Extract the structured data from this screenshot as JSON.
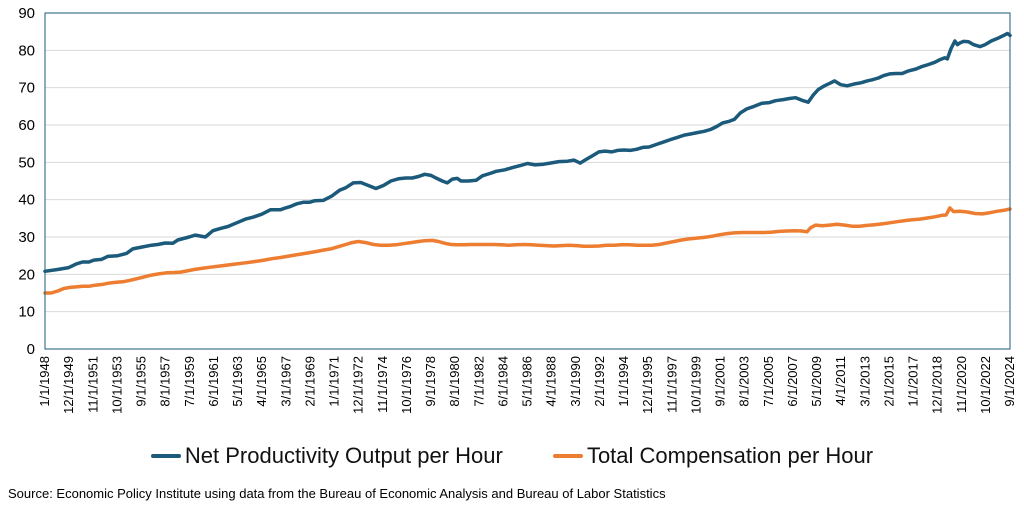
{
  "source_note": "Source: Economic Policy Institute using data from the Bureau of Economic Analysis and Bureau of Labor Statistics",
  "chart_data": {
    "type": "line",
    "title": "",
    "xlabel": "",
    "ylabel": "",
    "ylim": [
      0,
      90
    ],
    "yticks": [
      0,
      10,
      20,
      30,
      40,
      50,
      60,
      70,
      80,
      90
    ],
    "xlim": [
      1948.0,
      2025.0
    ],
    "xtick_labels": [
      "1/1/1948",
      "12/1/1949",
      "11/1/1951",
      "10/1/1953",
      "9/1/1955",
      "8/1/1957",
      "7/1/1959",
      "6/1/1961",
      "5/1/1963",
      "4/1/1965",
      "3/1/1967",
      "2/1/1969",
      "1/1/1971",
      "12/1/1972",
      "11/1/1974",
      "10/1/1976",
      "9/1/1978",
      "8/1/1980",
      "7/1/1982",
      "6/1/1984",
      "5/1/1986",
      "4/1/1988",
      "3/1/1990",
      "2/1/1992",
      "1/1/1994",
      "12/1/1995",
      "11/1/1997",
      "10/1/1999",
      "9/1/2001",
      "8/1/2003",
      "7/1/2005",
      "6/1/2007",
      "5/1/2009",
      "4/1/2011",
      "3/1/2013",
      "2/1/2015",
      "1/1/2017",
      "12/1/2018",
      "11/1/2020",
      "10/1/2022",
      "9/1/2024"
    ],
    "grid": "horizontal",
    "legend_position": "bottom",
    "series": [
      {
        "name": "Net Productivity Output per Hour",
        "color": "#1b5a7a",
        "points": [
          [
            1948.0,
            20.8
          ],
          [
            1949.0,
            21.3
          ],
          [
            1949.9,
            21.8
          ],
          [
            1950.5,
            22.8
          ],
          [
            1951.0,
            23.3
          ],
          [
            1951.5,
            23.3
          ],
          [
            1951.9,
            23.8
          ],
          [
            1952.5,
            24.0
          ],
          [
            1953.0,
            24.8
          ],
          [
            1953.8,
            25.0
          ],
          [
            1954.5,
            25.6
          ],
          [
            1955.0,
            26.8
          ],
          [
            1955.7,
            27.3
          ],
          [
            1956.5,
            27.8
          ],
          [
            1957.0,
            28.0
          ],
          [
            1957.6,
            28.4
          ],
          [
            1958.2,
            28.3
          ],
          [
            1958.6,
            29.2
          ],
          [
            1959.5,
            30.0
          ],
          [
            1960.0,
            30.5
          ],
          [
            1960.8,
            30.0
          ],
          [
            1961.4,
            31.7
          ],
          [
            1962.0,
            32.3
          ],
          [
            1962.6,
            32.8
          ],
          [
            1963.3,
            33.8
          ],
          [
            1964.0,
            34.8
          ],
          [
            1964.6,
            35.3
          ],
          [
            1965.3,
            36.1
          ],
          [
            1966.0,
            37.3
          ],
          [
            1966.8,
            37.3
          ],
          [
            1967.2,
            37.8
          ],
          [
            1967.6,
            38.2
          ],
          [
            1968.1,
            38.9
          ],
          [
            1968.6,
            39.3
          ],
          [
            1969.1,
            39.3
          ],
          [
            1969.5,
            39.7
          ],
          [
            1970.2,
            39.8
          ],
          [
            1970.9,
            41.0
          ],
          [
            1971.5,
            42.5
          ],
          [
            1972.0,
            43.2
          ],
          [
            1972.6,
            44.5
          ],
          [
            1973.2,
            44.6
          ],
          [
            1973.8,
            43.8
          ],
          [
            1974.4,
            43.0
          ],
          [
            1975.0,
            43.8
          ],
          [
            1975.6,
            45.0
          ],
          [
            1976.2,
            45.6
          ],
          [
            1976.8,
            45.8
          ],
          [
            1977.3,
            45.8
          ],
          [
            1977.8,
            46.2
          ],
          [
            1978.3,
            46.8
          ],
          [
            1978.8,
            46.5
          ],
          [
            1979.2,
            45.8
          ],
          [
            1979.7,
            45.0
          ],
          [
            1980.1,
            44.5
          ],
          [
            1980.5,
            45.5
          ],
          [
            1980.9,
            45.7
          ],
          [
            1981.2,
            45.0
          ],
          [
            1981.8,
            45.0
          ],
          [
            1982.4,
            45.2
          ],
          [
            1982.9,
            46.4
          ],
          [
            1983.5,
            47.0
          ],
          [
            1984.0,
            47.6
          ],
          [
            1984.7,
            48.0
          ],
          [
            1985.3,
            48.6
          ],
          [
            1986.0,
            49.2
          ],
          [
            1986.5,
            49.7
          ],
          [
            1987.1,
            49.3
          ],
          [
            1987.8,
            49.5
          ],
          [
            1988.3,
            49.8
          ],
          [
            1989.0,
            50.2
          ],
          [
            1989.7,
            50.3
          ],
          [
            1990.2,
            50.6
          ],
          [
            1990.7,
            49.8
          ],
          [
            1991.2,
            50.8
          ],
          [
            1991.7,
            51.8
          ],
          [
            1992.2,
            52.8
          ],
          [
            1992.7,
            53.0
          ],
          [
            1993.2,
            52.8
          ],
          [
            1993.7,
            53.2
          ],
          [
            1994.2,
            53.3
          ],
          [
            1994.7,
            53.2
          ],
          [
            1995.2,
            53.5
          ],
          [
            1995.7,
            54.0
          ],
          [
            1996.2,
            54.1
          ],
          [
            1996.8,
            54.8
          ],
          [
            1997.4,
            55.5
          ],
          [
            1997.9,
            56.1
          ],
          [
            1998.4,
            56.6
          ],
          [
            1999.0,
            57.3
          ],
          [
            1999.5,
            57.6
          ],
          [
            2000.1,
            58.0
          ],
          [
            2000.6,
            58.3
          ],
          [
            2001.1,
            58.8
          ],
          [
            2001.6,
            59.6
          ],
          [
            2002.1,
            60.6
          ],
          [
            2002.6,
            61.0
          ],
          [
            2003.0,
            61.5
          ],
          [
            2003.5,
            63.3
          ],
          [
            2004.0,
            64.3
          ],
          [
            2004.6,
            65.0
          ],
          [
            2005.2,
            65.8
          ],
          [
            2005.8,
            66.0
          ],
          [
            2006.3,
            66.5
          ],
          [
            2006.9,
            66.8
          ],
          [
            2007.4,
            67.1
          ],
          [
            2007.9,
            67.3
          ],
          [
            2008.5,
            66.5
          ],
          [
            2008.9,
            66.1
          ],
          [
            2009.3,
            68.0
          ],
          [
            2009.7,
            69.5
          ],
          [
            2010.2,
            70.5
          ],
          [
            2010.7,
            71.3
          ],
          [
            2011.0,
            71.8
          ],
          [
            2011.5,
            70.8
          ],
          [
            2012.0,
            70.5
          ],
          [
            2012.6,
            71.0
          ],
          [
            2013.1,
            71.3
          ],
          [
            2013.6,
            71.8
          ],
          [
            2014.0,
            72.1
          ],
          [
            2014.5,
            72.6
          ],
          [
            2014.9,
            73.2
          ],
          [
            2015.4,
            73.7
          ],
          [
            2015.9,
            73.8
          ],
          [
            2016.4,
            73.8
          ],
          [
            2016.9,
            74.5
          ],
          [
            2017.5,
            75.0
          ],
          [
            2018.0,
            75.7
          ],
          [
            2018.5,
            76.2
          ],
          [
            2019.0,
            76.8
          ],
          [
            2019.4,
            77.5
          ],
          [
            2019.8,
            78.0
          ],
          [
            2020.0,
            77.7
          ],
          [
            2020.3,
            80.5
          ],
          [
            2020.6,
            82.5
          ],
          [
            2020.8,
            81.5
          ],
          [
            2021.0,
            82.0
          ],
          [
            2021.3,
            82.4
          ],
          [
            2021.7,
            82.3
          ],
          [
            2022.1,
            81.5
          ],
          [
            2022.6,
            81.0
          ],
          [
            2023.0,
            81.5
          ],
          [
            2023.5,
            82.5
          ],
          [
            2024.0,
            83.2
          ],
          [
            2024.5,
            84.0
          ],
          [
            2024.8,
            84.5
          ],
          [
            2025.0,
            84.0
          ]
        ]
      },
      {
        "name": "Total Compensation per Hour",
        "color": "#ed7d31",
        "points": [
          [
            1948.0,
            15.0
          ],
          [
            1948.5,
            15.0
          ],
          [
            1949.0,
            15.5
          ],
          [
            1949.5,
            16.2
          ],
          [
            1950.0,
            16.5
          ],
          [
            1950.6,
            16.7
          ],
          [
            1951.0,
            16.8
          ],
          [
            1951.5,
            16.8
          ],
          [
            1952.0,
            17.1
          ],
          [
            1952.6,
            17.3
          ],
          [
            1953.0,
            17.6
          ],
          [
            1953.5,
            17.8
          ],
          [
            1954.2,
            18.0
          ],
          [
            1954.8,
            18.4
          ],
          [
            1955.3,
            18.8
          ],
          [
            1955.9,
            19.3
          ],
          [
            1956.5,
            19.8
          ],
          [
            1957.0,
            20.1
          ],
          [
            1957.7,
            20.4
          ],
          [
            1958.3,
            20.5
          ],
          [
            1958.8,
            20.6
          ],
          [
            1959.3,
            20.9
          ],
          [
            1959.9,
            21.3
          ],
          [
            1960.5,
            21.6
          ],
          [
            1961.2,
            21.9
          ],
          [
            1961.9,
            22.2
          ],
          [
            1962.6,
            22.5
          ],
          [
            1963.3,
            22.8
          ],
          [
            1964.0,
            23.1
          ],
          [
            1964.7,
            23.4
          ],
          [
            1965.5,
            23.8
          ],
          [
            1966.1,
            24.2
          ],
          [
            1966.8,
            24.5
          ],
          [
            1967.5,
            24.9
          ],
          [
            1968.2,
            25.3
          ],
          [
            1968.9,
            25.7
          ],
          [
            1969.6,
            26.1
          ],
          [
            1970.2,
            26.5
          ],
          [
            1970.8,
            26.8
          ],
          [
            1971.4,
            27.4
          ],
          [
            1972.0,
            28.0
          ],
          [
            1972.5,
            28.5
          ],
          [
            1973.0,
            28.8
          ],
          [
            1973.6,
            28.5
          ],
          [
            1974.2,
            28.0
          ],
          [
            1974.8,
            27.8
          ],
          [
            1975.4,
            27.8
          ],
          [
            1976.0,
            27.9
          ],
          [
            1976.6,
            28.2
          ],
          [
            1977.2,
            28.5
          ],
          [
            1977.8,
            28.8
          ],
          [
            1978.3,
            29.0
          ],
          [
            1978.9,
            29.1
          ],
          [
            1979.4,
            28.8
          ],
          [
            1979.9,
            28.3
          ],
          [
            1980.4,
            28.0
          ],
          [
            1980.9,
            27.9
          ],
          [
            1981.4,
            27.9
          ],
          [
            1982.0,
            28.0
          ],
          [
            1982.6,
            28.0
          ],
          [
            1983.2,
            28.0
          ],
          [
            1983.8,
            28.0
          ],
          [
            1984.4,
            27.9
          ],
          [
            1985.0,
            27.8
          ],
          [
            1985.6,
            27.9
          ],
          [
            1986.2,
            28.0
          ],
          [
            1986.8,
            27.9
          ],
          [
            1987.4,
            27.8
          ],
          [
            1988.0,
            27.7
          ],
          [
            1988.6,
            27.6
          ],
          [
            1989.2,
            27.7
          ],
          [
            1989.8,
            27.8
          ],
          [
            1990.4,
            27.7
          ],
          [
            1991.0,
            27.5
          ],
          [
            1991.6,
            27.5
          ],
          [
            1992.2,
            27.6
          ],
          [
            1992.8,
            27.8
          ],
          [
            1993.4,
            27.8
          ],
          [
            1994.0,
            27.9
          ],
          [
            1994.6,
            27.9
          ],
          [
            1995.2,
            27.8
          ],
          [
            1995.8,
            27.8
          ],
          [
            1996.4,
            27.8
          ],
          [
            1997.0,
            28.0
          ],
          [
            1997.6,
            28.4
          ],
          [
            1998.2,
            28.8
          ],
          [
            1998.8,
            29.2
          ],
          [
            1999.4,
            29.5
          ],
          [
            2000.0,
            29.7
          ],
          [
            2000.6,
            29.9
          ],
          [
            2001.2,
            30.2
          ],
          [
            2001.8,
            30.6
          ],
          [
            2002.4,
            30.9
          ],
          [
            2003.0,
            31.1
          ],
          [
            2003.6,
            31.2
          ],
          [
            2004.2,
            31.2
          ],
          [
            2004.8,
            31.2
          ],
          [
            2005.4,
            31.2
          ],
          [
            2006.0,
            31.3
          ],
          [
            2006.6,
            31.5
          ],
          [
            2007.2,
            31.6
          ],
          [
            2007.8,
            31.7
          ],
          [
            2008.4,
            31.6
          ],
          [
            2008.8,
            31.4
          ],
          [
            2009.1,
            32.5
          ],
          [
            2009.5,
            33.2
          ],
          [
            2010.0,
            33.0
          ],
          [
            2010.6,
            33.2
          ],
          [
            2011.2,
            33.4
          ],
          [
            2011.8,
            33.2
          ],
          [
            2012.4,
            32.9
          ],
          [
            2013.0,
            32.9
          ],
          [
            2013.6,
            33.1
          ],
          [
            2014.2,
            33.3
          ],
          [
            2014.8,
            33.5
          ],
          [
            2015.4,
            33.8
          ],
          [
            2016.0,
            34.1
          ],
          [
            2016.6,
            34.4
          ],
          [
            2017.2,
            34.6
          ],
          [
            2017.8,
            34.8
          ],
          [
            2018.4,
            35.1
          ],
          [
            2019.0,
            35.4
          ],
          [
            2019.6,
            35.8
          ],
          [
            2019.9,
            35.9
          ],
          [
            2020.2,
            37.8
          ],
          [
            2020.5,
            36.8
          ],
          [
            2021.0,
            36.9
          ],
          [
            2021.6,
            36.7
          ],
          [
            2022.2,
            36.3
          ],
          [
            2022.8,
            36.2
          ],
          [
            2023.4,
            36.5
          ],
          [
            2024.0,
            36.9
          ],
          [
            2024.6,
            37.2
          ],
          [
            2025.0,
            37.5
          ]
        ]
      }
    ]
  }
}
